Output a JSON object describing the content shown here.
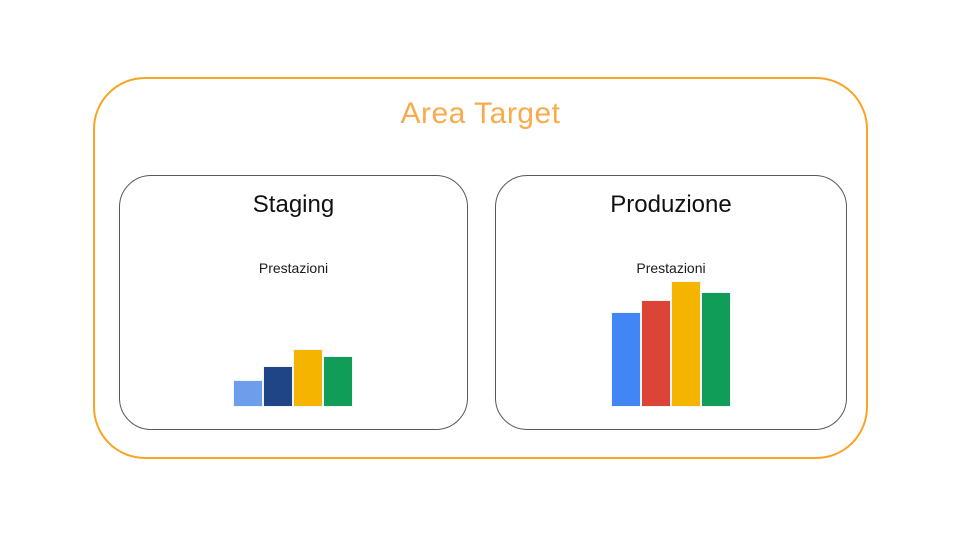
{
  "page": {
    "background_color": "#FFFFFF"
  },
  "area_target": {
    "title": "Area Target",
    "title_color": "#F9AB4C",
    "border_color": "#F9A424"
  },
  "boxes": [
    {
      "id": "staging",
      "title": "Staging",
      "chart_label": "Prestazioni"
    },
    {
      "id": "produzione",
      "title": "Produzione",
      "chart_label": "Prestazioni"
    }
  ],
  "chart_data": [
    {
      "id": "staging-chart",
      "type": "bar",
      "title": "Prestazioni",
      "values": [
        25,
        39,
        56,
        49
      ],
      "colors": [
        "#6D9EEB",
        "#1F4587",
        "#F4B400",
        "#0F9D58"
      ],
      "axes": "none",
      "legend": "none",
      "note": "values are relative bar heights in px; no axis scale shown"
    },
    {
      "id": "produzione-chart",
      "type": "bar",
      "title": "Prestazioni",
      "values": [
        93,
        105,
        124,
        113
      ],
      "colors": [
        "#4285F4",
        "#DB4437",
        "#F4B400",
        "#0F9D58"
      ],
      "axes": "none",
      "legend": "none",
      "note": "values are relative bar heights in px; no axis scale shown"
    }
  ]
}
